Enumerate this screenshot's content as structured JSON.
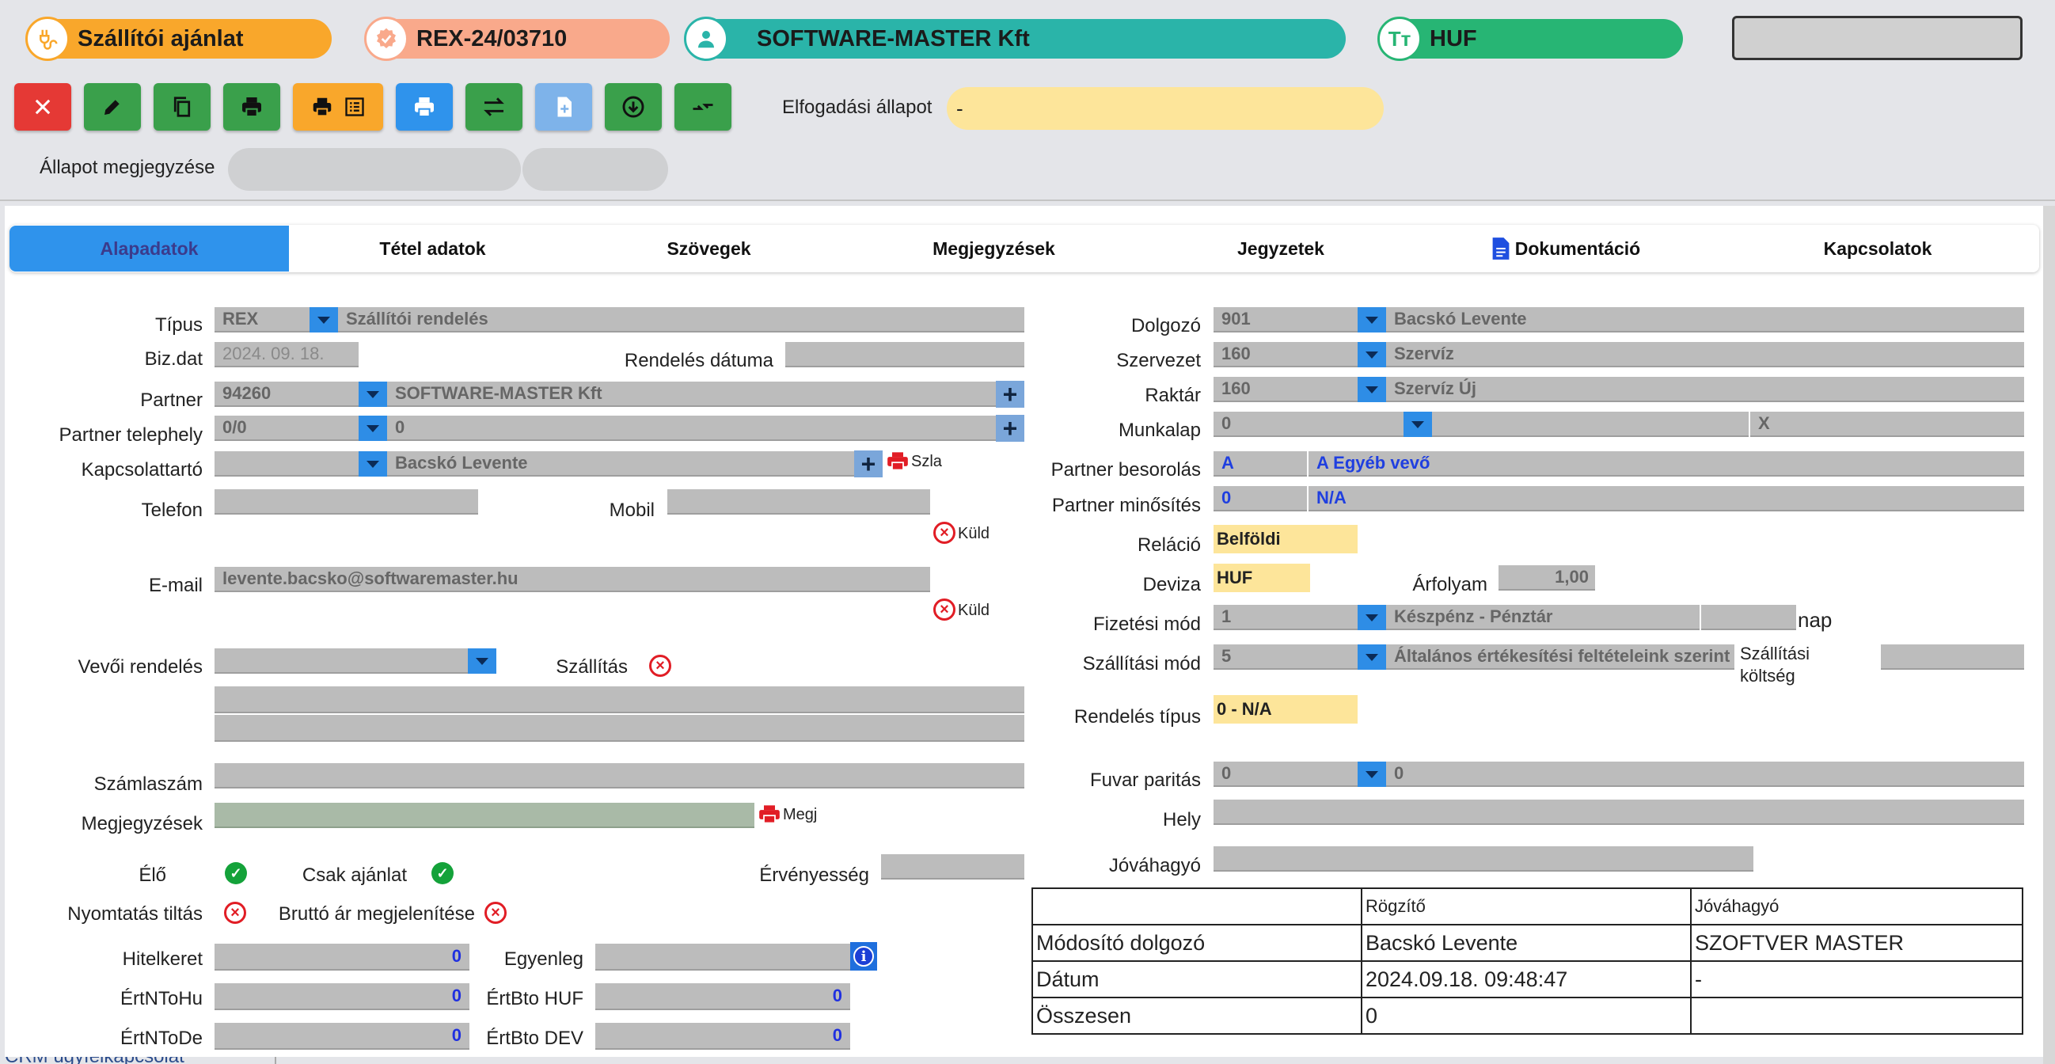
{
  "header": {
    "doc_type": "Szállítói ajánlat",
    "doc_number": "REX-24/03710",
    "partner": "SOFTWARE-MASTER Kft",
    "currency": "HUF"
  },
  "toolbar": {
    "acceptance_label": "Elfogadási állapot",
    "acceptance_value": "-",
    "status_note_label": "Állapot megjegyzése"
  },
  "tabs": [
    {
      "label": "Alapadatok",
      "active": true
    },
    {
      "label": "Tétel adatok"
    },
    {
      "label": "Szövegek"
    },
    {
      "label": "Megjegyzések"
    },
    {
      "label": "Jegyzetek"
    },
    {
      "label": "Dokumentáció"
    },
    {
      "label": "Kapcsolatok"
    }
  ],
  "left": {
    "tipus_label": "Típus",
    "tipus_code": "REX",
    "tipus_name": "Szállítói rendelés",
    "bizdat_label": "Biz.dat",
    "bizdat_value": "2024. 09. 18.",
    "rendeles_datuma_label": "Rendelés dátuma",
    "partner_label": "Partner",
    "partner_code": "94260",
    "partner_name": "SOFTWARE-MASTER Kft",
    "telephely_label": "Partner telephely",
    "telephely_code": "0/0",
    "telephely_name": "0",
    "kapcsolattarto_label": "Kapcsolattartó",
    "kapcsolattarto_name": "Bacskó Levente",
    "szla_label": "Szla",
    "telefon_label": "Telefon",
    "mobil_label": "Mobil",
    "kuld_label": "Küld",
    "email_label": "E-mail",
    "email_value": "levente.bacsko@softwaremaster.hu",
    "vevoi_rendeles_label": "Vevői rendelés",
    "szallitas_label": "Szállítás",
    "szamlaszam_label": "Számlaszám",
    "megjegyzesek_label": "Megjegyzések",
    "megj_label": "Megj",
    "elo_label": "Élő",
    "csak_ajanlat_label": "Csak ajánlat",
    "ervenyesseg_label": "Érvényesség",
    "nyomtatas_tiltas_label": "Nyomtatás tiltás",
    "brutto_label": "Bruttó ár megjelenítése",
    "hitelkeret_label": "Hitelkeret",
    "hitelkeret_value": "0",
    "egyenleg_label": "Egyenleg",
    "ertntohu_label": "ÉrtNToHu",
    "ertntohu_value": "0",
    "ertbtohuf_label": "ÉrtBto HUF",
    "ertbtohuf_value": "0",
    "ertntode_label": "ÉrtNToDe",
    "ertntode_value": "0",
    "ertbtodev_label": "ÉrtBto DEV",
    "ertbtodev_value": "0",
    "bottom_cut_text": "CRM ügyfélkapcsolat"
  },
  "right": {
    "dolgozo_label": "Dolgozó",
    "dolgozo_code": "901",
    "dolgozo_name": "Bacskó Levente",
    "szervezet_label": "Szervezet",
    "szervezet_code": "160",
    "szervezet_name": "Szervíz",
    "raktar_label": "Raktár",
    "raktar_code": "160",
    "raktar_name": "Szervíz Új",
    "munkalap_label": "Munkalap",
    "munkalap_code": "0",
    "munkalap_x": "X",
    "besorolas_label": "Partner besorolás",
    "besorolas_code": "A",
    "besorolas_name": "A Egyéb vevő",
    "minosites_label": "Partner minősítés",
    "minosites_code": "0",
    "minosites_name": "N/A",
    "relacio_label": "Reláció",
    "relacio_value": "Belföldi",
    "deviza_label": "Deviza",
    "deviza_value": "HUF",
    "arfolyam_label": "Árfolyam",
    "arfolyam_value": "1,00",
    "fizetesi_label": "Fizetési mód",
    "fizetesi_code": "1",
    "fizetesi_name": "Készpénz - Pénztár",
    "nap_label": "nap",
    "szallitasi_mod_label": "Szállítási mód",
    "szallitasi_mod_code": "5",
    "szallitasi_mod_name": "Általános értékesítési feltételeink szerint",
    "szallitasi_koltseg_label1": "Szállítási",
    "szallitasi_koltseg_label2": "költség",
    "rendeles_tipus_label": "Rendelés típus",
    "rendeles_tipus_value": "0 - N/A",
    "fuvar_label": "Fuvar paritás",
    "fuvar_code": "0",
    "fuvar_name": "0",
    "hely_label": "Hely",
    "jovahagyo_label": "Jóváhagyó"
  },
  "info_table": {
    "headers": [
      "",
      "Rögzítő",
      "Jóváhagyó"
    ],
    "rows": [
      [
        "Módosító dolgozó",
        "Bacskó Levente",
        "SZOFTVER MASTER"
      ],
      [
        "Dátum",
        "2024.09.18. 09:48:47",
        "-"
      ],
      [
        "Összesen",
        "0",
        ""
      ]
    ]
  },
  "colors": {
    "orange": "#f9a72b",
    "salmon": "#f9a98b",
    "teal": "#2ab4a9",
    "green": "#27b574",
    "tab_active": "#2f93ec",
    "button_green": "#3aa04b",
    "button_red": "#e53935"
  }
}
